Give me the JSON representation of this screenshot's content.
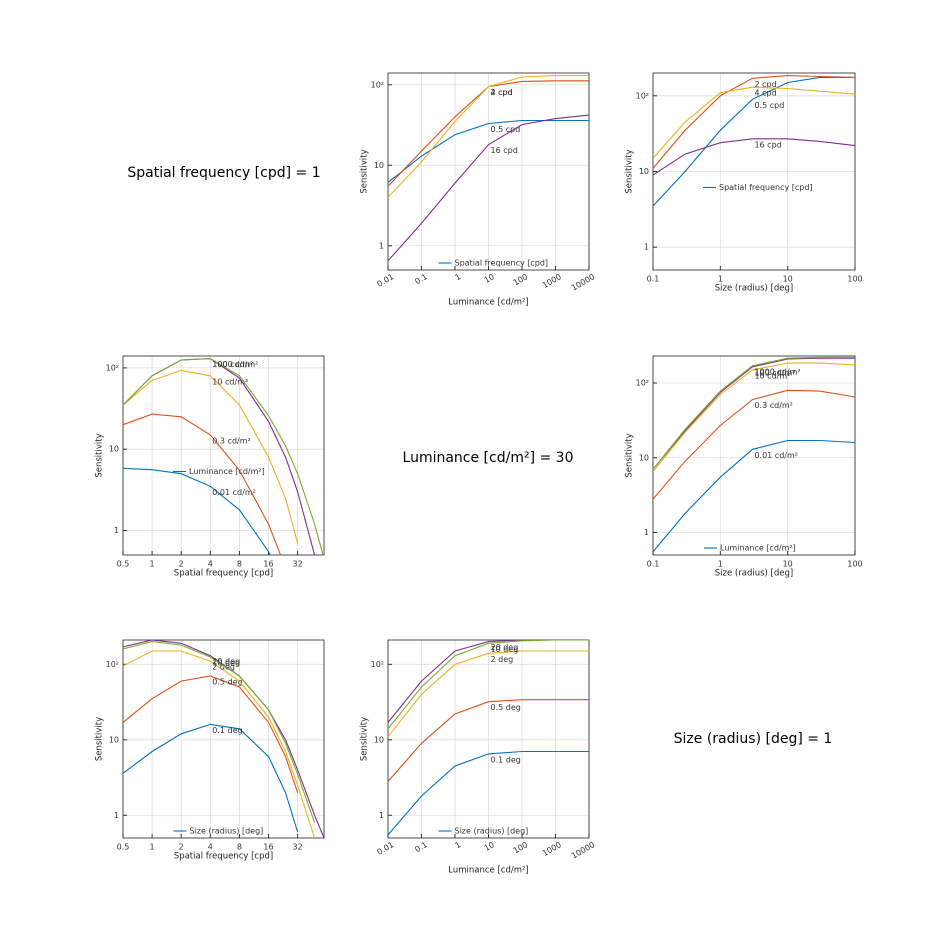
{
  "fixed_labels": [
    "Spatial frequency [cpd] = 1",
    "Luminance [cd/m²] = 30",
    "Size (radius) [deg] = 1"
  ],
  "chart_data": [
    {
      "type": "line",
      "xscale": "log",
      "yscale": "log",
      "grid": true,
      "xlabel": "Luminance [cd/m²]",
      "ylabel": "Sensitivity",
      "legend_title": "Spatial frequency [cpd]",
      "legend_loc": "lower center",
      "xtick_rotation": 30,
      "x": [
        0.01,
        0.1,
        1,
        10,
        100,
        1000,
        10000
      ],
      "xlim": [
        0.01,
        10000
      ],
      "xticks": [
        0.01,
        0.1,
        1,
        10,
        100,
        1000,
        10000
      ],
      "ylim": [
        0.5,
        140
      ],
      "yticks": [
        1,
        10,
        {
          "value": 100,
          "label": "10²"
        }
      ],
      "series": [
        {
          "name": "0.5 cpd",
          "color": "#0072bd",
          "values": [
            6.1,
            13,
            24,
            33,
            36,
            36,
            36
          ]
        },
        {
          "name": "2 cpd",
          "color": "#d95319",
          "values": [
            5.5,
            15,
            40,
            95,
            110,
            112,
            112
          ]
        },
        {
          "name": "4 cpd",
          "color": "#edb120",
          "values": [
            4,
            11,
            35,
            95,
            125,
            130,
            130
          ]
        },
        {
          "name": "16 cpd",
          "color": "#7e2f8e",
          "values": [
            0.65,
            1.9,
            6,
            18,
            32,
            38,
            42
          ]
        }
      ]
    },
    {
      "type": "line",
      "xscale": "log",
      "yscale": "log",
      "grid": true,
      "xlabel": "Size (radius) [deg]",
      "ylabel": "Sensitivity",
      "legend_title": "Spatial frequency [cpd]",
      "legend_loc": "center left",
      "xtick_rotation": 0,
      "x": [
        0.1,
        0.3,
        1,
        3,
        10,
        30,
        100
      ],
      "xlim": [
        0.1,
        100
      ],
      "xticks": [
        0.1,
        1,
        10,
        100
      ],
      "ylim": [
        0.5,
        200
      ],
      "yticks": [
        1,
        10,
        {
          "value": 100,
          "label": "10²"
        }
      ],
      "series": [
        {
          "name": "0.5 cpd",
          "color": "#0072bd",
          "values": [
            3.5,
            10,
            35,
            90,
            150,
            175,
            175
          ]
        },
        {
          "name": "2 cpd",
          "color": "#d95319",
          "values": [
            11,
            35,
            100,
            170,
            185,
            180,
            175
          ]
        },
        {
          "name": "4 cpd",
          "color": "#edb120",
          "values": [
            15,
            45,
            110,
            130,
            125,
            115,
            105
          ]
        },
        {
          "name": "16 cpd",
          "color": "#7e2f8e",
          "values": [
            9,
            17,
            24,
            27,
            27,
            25,
            22
          ]
        }
      ]
    },
    {
      "type": "line",
      "xscale": "log",
      "yscale": "log",
      "grid": true,
      "xlabel": "Spatial frequency [cpd]",
      "ylabel": "Sensitivity",
      "legend_title": "Luminance [cd/m²]",
      "legend_loc": "center left",
      "xtick_rotation": 0,
      "x": [
        0.5,
        1,
        2,
        4,
        8,
        16,
        24,
        32,
        48,
        60
      ],
      "xlim": [
        0.5,
        60
      ],
      "xticks": [
        0.5,
        1,
        2,
        4,
        8,
        16,
        32
      ],
      "ylim": [
        0.5,
        140
      ],
      "yticks": [
        1,
        10,
        {
          "value": 100,
          "label": "10²"
        }
      ],
      "series": [
        {
          "name": "0.01 cd/m²",
          "color": "#0072bd",
          "values": [
            5.8,
            5.6,
            5,
            3.5,
            1.8,
            0.55,
            0.2,
            null,
            null,
            null
          ]
        },
        {
          "name": "0.3 cd/m²",
          "color": "#d95319",
          "values": [
            20,
            27,
            25,
            15,
            5.5,
            1.2,
            0.35,
            null,
            null,
            null
          ]
        },
        {
          "name": "10 cd/m²",
          "color": "#edb120",
          "values": [
            35,
            70,
            93,
            80,
            35,
            8,
            2.5,
            0.7,
            null,
            null
          ]
        },
        {
          "name": "100 cd/m²",
          "color": "#7e2f8e",
          "values": [
            35,
            80,
            125,
            130,
            75,
            22,
            8,
            3,
            0.5,
            null
          ]
        },
        {
          "name": "1000 cd/m²",
          "color": "#77ac30",
          "values": [
            35,
            80,
            125,
            130,
            80,
            26,
            11,
            5,
            1.2,
            0.45
          ]
        }
      ]
    },
    {
      "type": "line",
      "xscale": "log",
      "yscale": "log",
      "grid": true,
      "xlabel": "Size (radius) [deg]",
      "ylabel": "Sensitivity",
      "legend_title": "Luminance [cd/m²]",
      "legend_loc": "lower center",
      "xtick_rotation": 0,
      "x": [
        0.1,
        0.3,
        1,
        3,
        10,
        30,
        100
      ],
      "xlim": [
        0.1,
        100
      ],
      "xticks": [
        0.1,
        1,
        10,
        100
      ],
      "ylim": [
        0.5,
        230
      ],
      "yticks": [
        1,
        10,
        {
          "value": 100,
          "label": "10²"
        }
      ],
      "series": [
        {
          "name": "0.01 cd/m²",
          "color": "#0072bd",
          "values": [
            0.55,
            1.8,
            5.5,
            13,
            17,
            17,
            16
          ]
        },
        {
          "name": "0.3 cd/m²",
          "color": "#d95319",
          "values": [
            2.8,
            9,
            27,
            60,
            80,
            78,
            65
          ]
        },
        {
          "name": "10 cd/m²",
          "color": "#edb120",
          "values": [
            6.5,
            22,
            70,
            150,
            185,
            185,
            175
          ]
        },
        {
          "name": "100 cd/m²",
          "color": "#7e2f8e",
          "values": [
            7,
            23,
            75,
            165,
            210,
            215,
            215
          ]
        },
        {
          "name": "1000 cd/m²",
          "color": "#77ac30",
          "values": [
            7,
            24,
            78,
            170,
            215,
            220,
            220
          ]
        }
      ]
    },
    {
      "type": "line",
      "xscale": "log",
      "yscale": "log",
      "grid": true,
      "xlabel": "Spatial frequency [cpd]",
      "ylabel": "Sensitivity",
      "legend_title": "Size (radius) [deg]",
      "legend_loc": "lower center",
      "xtick_rotation": 0,
      "x": [
        0.5,
        1,
        2,
        4,
        8,
        16,
        24,
        32,
        48,
        60
      ],
      "xlim": [
        0.5,
        60
      ],
      "xticks": [
        0.5,
        1,
        2,
        4,
        8,
        16,
        32
      ],
      "ylim": [
        0.5,
        210
      ],
      "yticks": [
        1,
        10,
        {
          "value": 100,
          "label": "10²"
        }
      ],
      "series": [
        {
          "name": "0.1 deg",
          "color": "#0072bd",
          "values": [
            3.6,
            7,
            12,
            16,
            14,
            6,
            2,
            0.6,
            null,
            null
          ]
        },
        {
          "name": "0.5 deg",
          "color": "#d95319",
          "values": [
            17,
            35,
            60,
            70,
            50,
            17,
            6,
            2,
            null,
            null
          ]
        },
        {
          "name": "2 deg",
          "color": "#edb120",
          "values": [
            95,
            150,
            150,
            110,
            60,
            20,
            7,
            2.5,
            0.5,
            null
          ]
        },
        {
          "name": "20 deg",
          "color": "#7e2f8e",
          "values": [
            170,
            210,
            190,
            130,
            70,
            25,
            10,
            4,
            1,
            0.5
          ]
        },
        {
          "name": "10 deg",
          "color": "#77ac30",
          "values": [
            160,
            200,
            180,
            125,
            70,
            25,
            9,
            3.5,
            0.8,
            null
          ]
        }
      ]
    },
    {
      "type": "line",
      "xscale": "log",
      "yscale": "log",
      "grid": true,
      "xlabel": "Luminance [cd/m²]",
      "ylabel": "Sensitivity",
      "legend_title": "Size (radius) [deg]",
      "legend_loc": "lower center",
      "xtick_rotation": 30,
      "x": [
        0.01,
        0.1,
        1,
        10,
        100,
        1000,
        10000
      ],
      "xlim": [
        0.01,
        10000
      ],
      "xticks": [
        0.01,
        0.1,
        1,
        10,
        100,
        1000,
        10000
      ],
      "ylim": [
        0.5,
        210
      ],
      "yticks": [
        1,
        10,
        {
          "value": 100,
          "label": "10²"
        }
      ],
      "series": [
        {
          "name": "0.1 deg",
          "color": "#0072bd",
          "values": [
            0.55,
            1.8,
            4.5,
            6.5,
            7,
            7,
            7
          ]
        },
        {
          "name": "0.5 deg",
          "color": "#d95319",
          "values": [
            2.8,
            9,
            22,
            32,
            34,
            34,
            34
          ]
        },
        {
          "name": "2 deg",
          "color": "#edb120",
          "values": [
            11,
            40,
            100,
            140,
            150,
            150,
            150
          ]
        },
        {
          "name": "20 deg",
          "color": "#7e2f8e",
          "values": [
            17,
            60,
            150,
            200,
            210,
            210,
            210
          ]
        },
        {
          "name": "10 deg",
          "color": "#77ac30",
          "values": [
            14,
            50,
            130,
            190,
            205,
            210,
            210
          ]
        }
      ]
    }
  ]
}
